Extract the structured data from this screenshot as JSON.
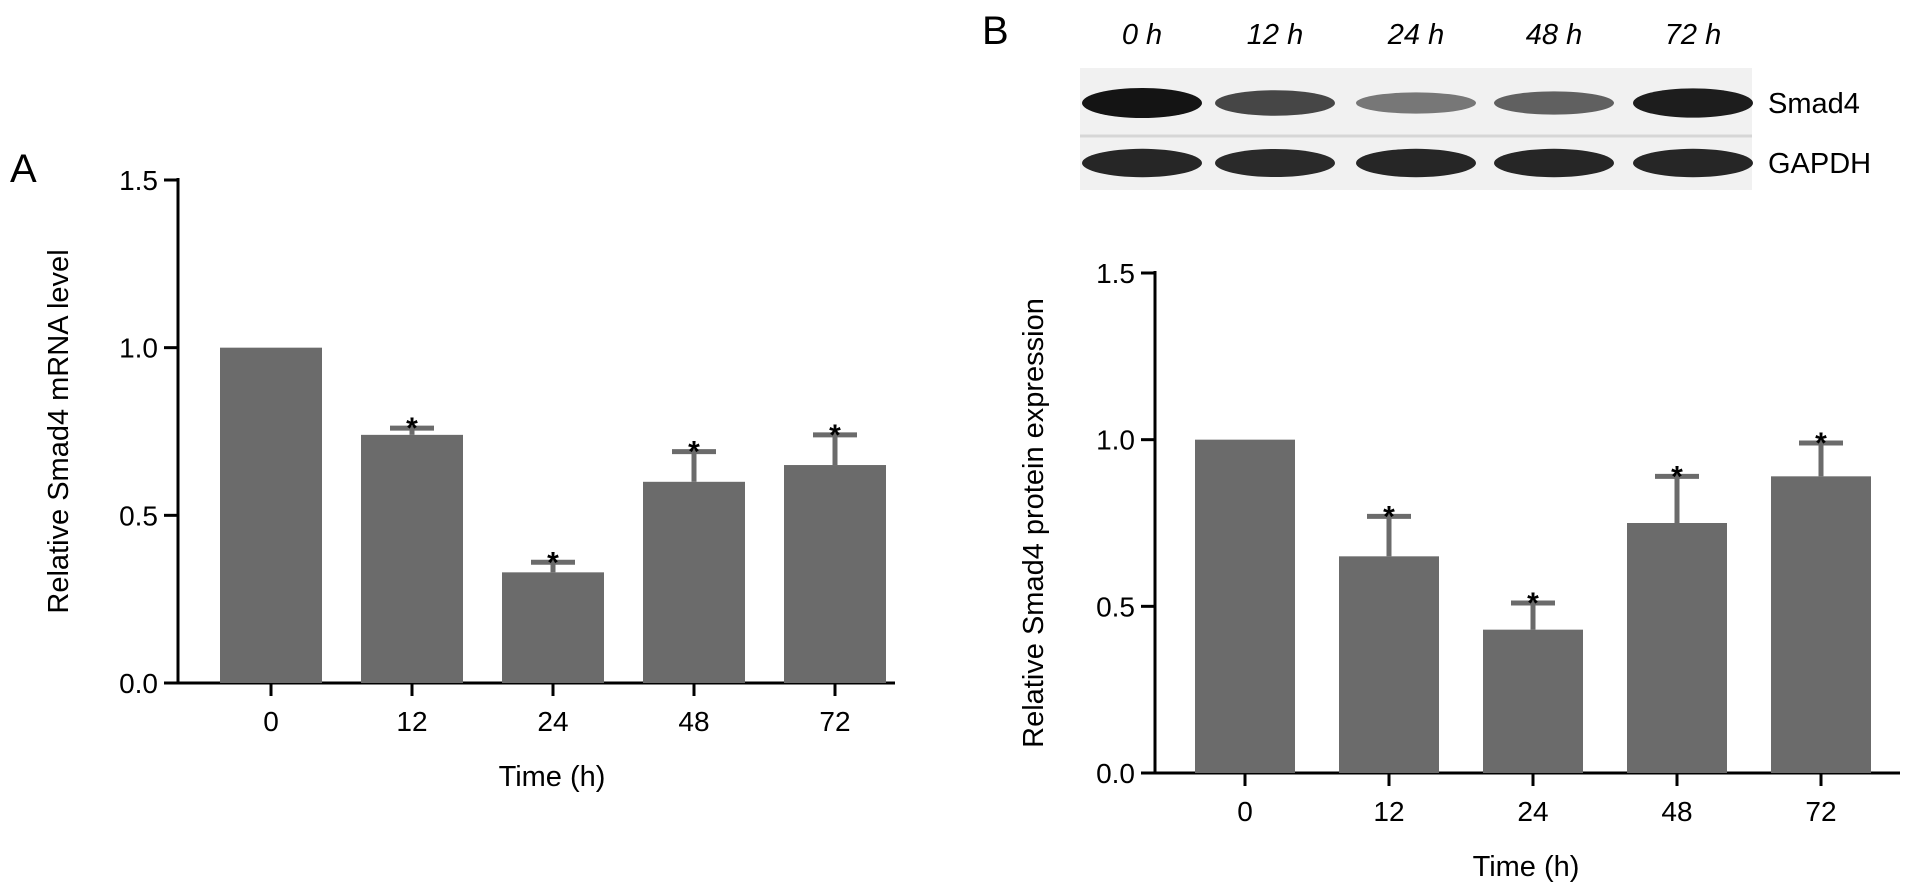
{
  "figure": {
    "panel_a_letter": "A",
    "panel_b_letter": "B"
  },
  "blot": {
    "lanes": [
      "0 h",
      "12 h",
      "24 h",
      "48 h",
      "72 h"
    ],
    "bands": [
      {
        "name": "Smad4",
        "intensity": [
          1.0,
          0.72,
          0.45,
          0.58,
          0.95
        ]
      },
      {
        "name": "GAPDH",
        "intensity": [
          0.9,
          0.88,
          0.9,
          0.9,
          0.9
        ]
      }
    ]
  },
  "chart_data": [
    {
      "panel": "A",
      "type": "bar",
      "categories": [
        "0",
        "12",
        "24",
        "48",
        "72"
      ],
      "values": [
        1.0,
        0.74,
        0.33,
        0.6,
        0.65
      ],
      "errors": [
        0,
        0.02,
        0.03,
        0.09,
        0.09
      ],
      "significance": [
        "",
        "*",
        "*",
        "*",
        "*"
      ],
      "xlabel": "Time (h)",
      "ylabel": "Relative Smad4 mRNA level",
      "ylim": [
        0,
        1.5
      ],
      "yticks": [
        "0.0",
        "0.5",
        "1.0",
        "1.5"
      ],
      "bar_color": "#6b6b6b",
      "grid": false
    },
    {
      "panel": "B",
      "type": "bar",
      "categories": [
        "0",
        "12",
        "24",
        "48",
        "72"
      ],
      "values": [
        1.0,
        0.65,
        0.43,
        0.75,
        0.89
      ],
      "errors": [
        0,
        0.12,
        0.08,
        0.14,
        0.1
      ],
      "significance": [
        "",
        "*",
        "*",
        "*",
        "*"
      ],
      "xlabel": "Time (h)",
      "ylabel": "Relative Smad4 protein expression",
      "ylim": [
        0,
        1.5
      ],
      "yticks": [
        "0.0",
        "0.5",
        "1.0",
        "1.5"
      ],
      "bar_color": "#6b6b6b",
      "grid": false
    }
  ]
}
